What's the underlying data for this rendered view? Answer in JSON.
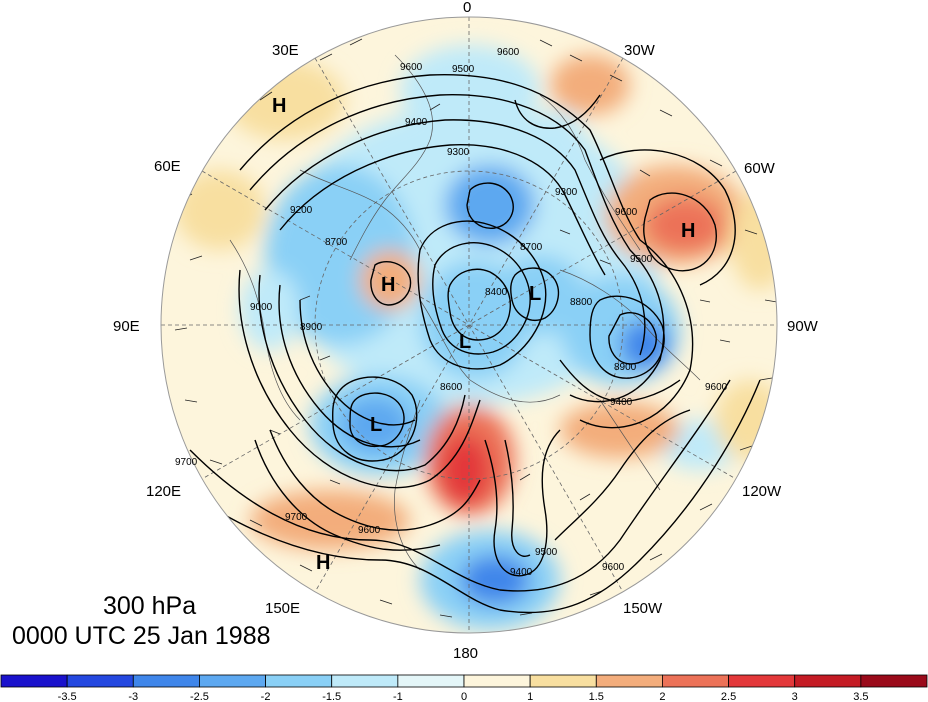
{
  "title": {
    "level": "300 hPa",
    "time": "0000 UTC 25 Jan 1988"
  },
  "longitude_labels": {
    "top": "0",
    "bottom": "180",
    "l30": "30E",
    "l60": "60E",
    "l90": "90E",
    "l120": "120E",
    "l150": "150E",
    "r30": "30W",
    "r60": "60W",
    "r90": "90W",
    "r120": "120W",
    "r150": "150W"
  },
  "centers": [
    {
      "type": "H"
    },
    {
      "type": "H"
    },
    {
      "type": "H"
    },
    {
      "type": "H"
    },
    {
      "type": "L"
    },
    {
      "type": "L"
    },
    {
      "type": "L"
    }
  ],
  "contour_values": {
    "c9600a": "9600",
    "c9600b": "9600",
    "c9500a": "9500",
    "c9400a": "9400",
    "c9300a": "9300",
    "c9200a": "9200",
    "c9000a": "9000",
    "c8900a": "8900",
    "c8900b": "8900",
    "c8700a": "8700",
    "c8700b": "8700",
    "c8600a": "8600",
    "c9700a": "9700",
    "c9600c": "9600",
    "c9500b": "9500",
    "c9400b": "9400",
    "c9600d": "9600",
    "c9600e": "9600",
    "c9400c": "9400",
    "c9300b": "9300",
    "c9500c": "9500",
    "c9600f": "9600",
    "c9700b": "9700",
    "c8800a": "8800",
    "c8400a": "8400"
  },
  "colorbar": {
    "ticks": [
      "-3.5",
      "-3",
      "-2.5",
      "-2",
      "-1.5",
      "-1",
      "0",
      "1",
      "1.5",
      "2",
      "2.5",
      "3",
      "3.5"
    ],
    "colors": [
      "#1a12cc",
      "#2448e0",
      "#3f86ea",
      "#5da8f0",
      "#8ad0f6",
      "#bfeaf9",
      "#e4f6f8",
      "#fdf5dc",
      "#f8dfa0",
      "#f3ad7c",
      "#ec7258",
      "#e3383a",
      "#c41b24",
      "#9a0a1a"
    ]
  }
}
